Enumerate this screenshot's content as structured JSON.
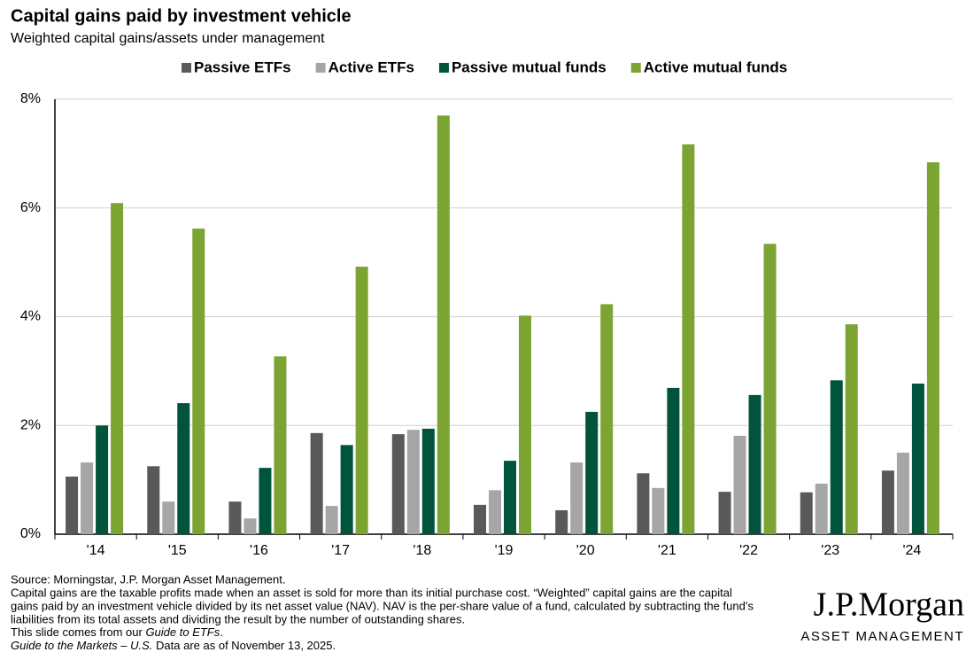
{
  "chart_data": {
    "type": "bar",
    "title": "Capital gains paid by investment vehicle",
    "subtitle": "Weighted capital gains/assets under management",
    "categories": [
      "'14",
      "'15",
      "'16",
      "'17",
      "'18",
      "'19",
      "'20",
      "'21",
      "'22",
      "'23",
      "'24"
    ],
    "series": [
      {
        "name": "Passive ETFs",
        "color": "#58595b",
        "values": [
          1.06,
          1.25,
          0.6,
          1.86,
          1.84,
          0.54,
          0.44,
          1.12,
          0.78,
          0.77,
          1.17
        ]
      },
      {
        "name": "Active ETFs",
        "color": "#a6a6a6",
        "values": [
          1.32,
          0.6,
          0.29,
          0.52,
          1.92,
          0.81,
          1.32,
          0.85,
          1.81,
          0.93,
          1.5
        ]
      },
      {
        "name": "Passive mutual funds",
        "color": "#00543c",
        "values": [
          2.0,
          2.41,
          1.22,
          1.64,
          1.94,
          1.35,
          2.25,
          2.69,
          2.56,
          2.83,
          2.77
        ]
      },
      {
        "name": "Active mutual funds",
        "color": "#7ba432",
        "values": [
          6.09,
          5.62,
          3.27,
          4.92,
          7.7,
          4.02,
          4.23,
          7.17,
          5.34,
          3.86,
          6.84
        ]
      }
    ],
    "ylim": [
      0,
      8
    ],
    "yticks": [
      {
        "value": 0,
        "label": "0%"
      },
      {
        "value": 2,
        "label": "2%"
      },
      {
        "value": 4,
        "label": "4%"
      },
      {
        "value": 6,
        "label": "6%"
      },
      {
        "value": 8,
        "label": "8%"
      }
    ],
    "grid": true
  },
  "footer": {
    "source": "Source: Morningstar, J.P. Morgan Asset Management.",
    "definition": [
      "Capital gains are the taxable profits made when an asset is sold for more than its initial purchase cost. “Weighted” capital gains are the capital",
      "gains paid by an investment vehicle divided by its net asset value (NAV). NAV is the per-share value of a fund, calculated by subtracting the fund’s",
      "liabilities from its total assets and dividing the result by the number of outstanding shares."
    ],
    "slide_note": [
      "This slide comes from our ",
      "Guide to ETFs",
      "."
    ],
    "data_note": [
      "Guide to the Markets – U.S.",
      " Data are as of November 13, 2025."
    ]
  },
  "logo": {
    "name": "J.P.Morgan",
    "tagline": "ASSET MANAGEMENT"
  }
}
